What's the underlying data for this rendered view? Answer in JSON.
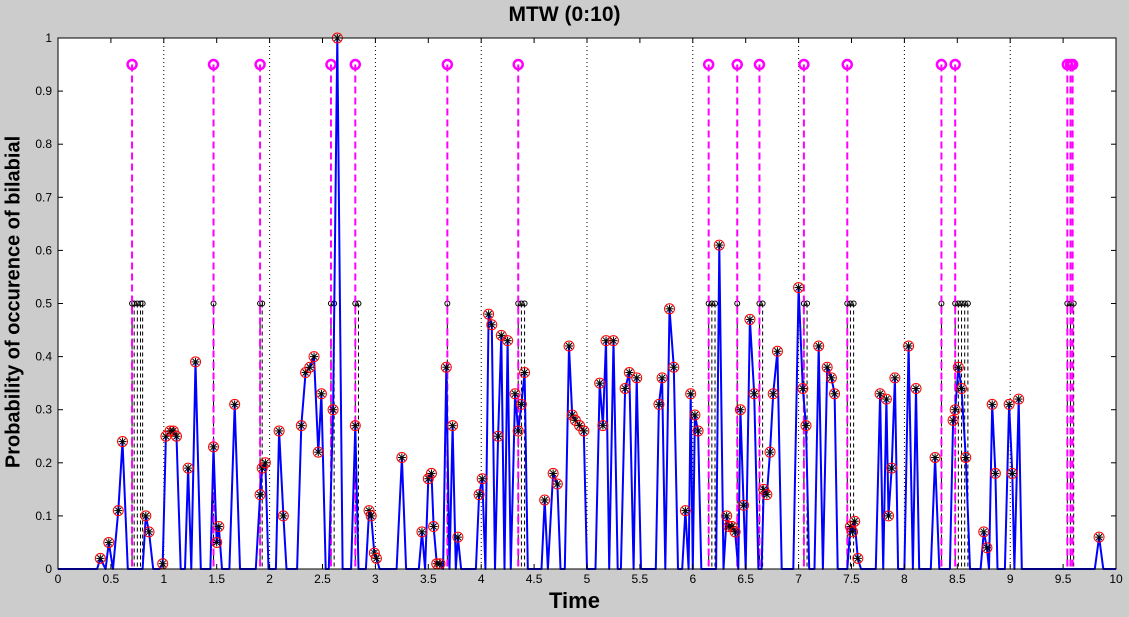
{
  "chart_data": {
    "type": "line",
    "title": "MTW (0:10)",
    "xlabel": "Time",
    "ylabel": "Probability of occurence of bilabial",
    "xlim": [
      0,
      10
    ],
    "ylim": [
      0,
      1
    ],
    "x_ticks": [
      "0",
      "0.5",
      "1",
      "1.5",
      "2",
      "2.5",
      "3",
      "3.5",
      "4",
      "4.5",
      "5",
      "5.5",
      "6",
      "6.5",
      "7",
      "7.5",
      "8",
      "8.5",
      "9",
      "9.5",
      "10"
    ],
    "y_ticks": [
      "0",
      "0.1",
      "0.2",
      "0.3",
      "0.4",
      "0.5",
      "0.6",
      "0.7",
      "0.8",
      "0.9",
      "1"
    ],
    "grid": "vertical dotted at integer x",
    "colors": {
      "signal": "#0000ff",
      "markers": "#ff0000",
      "events": "#ff00ff",
      "candidates": "#000000",
      "background": "#cccccc",
      "axes_background": "#ffffff"
    },
    "peaks": [
      [
        0.37,
        0.0
      ],
      [
        0.4,
        0.02
      ],
      [
        0.45,
        0.0
      ],
      [
        0.48,
        0.05
      ],
      [
        0.52,
        0.0
      ],
      [
        0.57,
        0.11
      ],
      [
        0.61,
        0.24
      ],
      [
        0.66,
        0.0
      ],
      [
        0.8,
        0.0
      ],
      [
        0.83,
        0.1
      ],
      [
        0.86,
        0.07
      ],
      [
        0.9,
        0.0
      ],
      [
        0.96,
        0.0
      ],
      [
        0.99,
        0.01
      ],
      [
        1.02,
        0.25
      ],
      [
        1.06,
        0.26
      ],
      [
        1.09,
        0.26
      ],
      [
        1.12,
        0.25
      ],
      [
        1.16,
        0.0
      ],
      [
        1.2,
        0.0
      ],
      [
        1.23,
        0.19
      ],
      [
        1.26,
        0.0
      ],
      [
        1.3,
        0.39
      ],
      [
        1.35,
        0.0
      ],
      [
        1.44,
        0.0
      ],
      [
        1.47,
        0.23
      ],
      [
        1.5,
        0.05
      ],
      [
        1.52,
        0.08
      ],
      [
        1.55,
        0.0
      ],
      [
        1.62,
        0.0
      ],
      [
        1.67,
        0.31
      ],
      [
        1.72,
        0.0
      ],
      [
        1.87,
        0.0
      ],
      [
        1.91,
        0.14
      ],
      [
        1.93,
        0.19
      ],
      [
        1.96,
        0.2
      ],
      [
        1.99,
        0.0
      ],
      [
        2.06,
        0.0
      ],
      [
        2.09,
        0.26
      ],
      [
        2.13,
        0.1
      ],
      [
        2.16,
        0.0
      ],
      [
        2.26,
        0.0
      ],
      [
        2.3,
        0.27
      ],
      [
        2.34,
        0.37
      ],
      [
        2.38,
        0.38
      ],
      [
        2.42,
        0.4
      ],
      [
        2.46,
        0.22
      ],
      [
        2.49,
        0.33
      ],
      [
        2.53,
        0.0
      ],
      [
        2.56,
        0.0
      ],
      [
        2.6,
        0.3
      ],
      [
        2.64,
        1.0
      ],
      [
        2.69,
        0.0
      ],
      [
        2.77,
        0.0
      ],
      [
        2.81,
        0.27
      ],
      [
        2.84,
        0.0
      ],
      [
        2.91,
        0.0
      ],
      [
        2.94,
        0.11
      ],
      [
        2.96,
        0.1
      ],
      [
        2.99,
        0.03
      ],
      [
        3.01,
        0.02
      ],
      [
        3.04,
        0.0
      ],
      [
        3.2,
        0.0
      ],
      [
        3.25,
        0.21
      ],
      [
        3.29,
        0.0
      ],
      [
        3.41,
        0.0
      ],
      [
        3.44,
        0.07
      ],
      [
        3.47,
        0.0
      ],
      [
        3.5,
        0.17
      ],
      [
        3.53,
        0.18
      ],
      [
        3.55,
        0.08
      ],
      [
        3.58,
        0.01
      ],
      [
        3.61,
        0.01
      ],
      [
        3.64,
        0.0
      ],
      [
        3.67,
        0.38
      ],
      [
        3.7,
        0.0
      ],
      [
        3.73,
        0.27
      ],
      [
        3.76,
        0.0
      ],
      [
        3.78,
        0.06
      ],
      [
        3.81,
        0.0
      ],
      [
        3.95,
        0.0
      ],
      [
        3.98,
        0.14
      ],
      [
        4.01,
        0.17
      ],
      [
        4.04,
        0.0
      ],
      [
        4.07,
        0.48
      ],
      [
        4.1,
        0.46
      ],
      [
        4.13,
        0.0
      ],
      [
        4.16,
        0.25
      ],
      [
        4.19,
        0.44
      ],
      [
        4.22,
        0.0
      ],
      [
        4.25,
        0.43
      ],
      [
        4.28,
        0.0
      ],
      [
        4.32,
        0.33
      ],
      [
        4.35,
        0.26
      ],
      [
        4.38,
        0.31
      ],
      [
        4.41,
        0.37
      ],
      [
        4.44,
        0.0
      ],
      [
        4.57,
        0.0
      ],
      [
        4.6,
        0.13
      ],
      [
        4.63,
        0.0
      ],
      [
        4.68,
        0.18
      ],
      [
        4.72,
        0.16
      ],
      [
        4.75,
        0.0
      ],
      [
        4.79,
        0.0
      ],
      [
        4.83,
        0.42
      ],
      [
        4.86,
        0.29
      ],
      [
        4.89,
        0.28
      ],
      [
        4.93,
        0.27
      ],
      [
        4.97,
        0.26
      ],
      [
        5.0,
        0.0
      ],
      [
        5.08,
        0.0
      ],
      [
        5.12,
        0.35
      ],
      [
        5.15,
        0.27
      ],
      [
        5.18,
        0.43
      ],
      [
        5.21,
        0.0
      ],
      [
        5.25,
        0.43
      ],
      [
        5.29,
        0.0
      ],
      [
        5.32,
        0.0
      ],
      [
        5.36,
        0.34
      ],
      [
        5.4,
        0.37
      ],
      [
        5.44,
        0.0
      ],
      [
        5.47,
        0.36
      ],
      [
        5.51,
        0.0
      ],
      [
        5.65,
        0.0
      ],
      [
        5.68,
        0.31
      ],
      [
        5.71,
        0.36
      ],
      [
        5.74,
        0.0
      ],
      [
        5.78,
        0.49
      ],
      [
        5.82,
        0.38
      ],
      [
        5.86,
        0.0
      ],
      [
        5.9,
        0.0
      ],
      [
        5.93,
        0.11
      ],
      [
        5.96,
        0.0
      ],
      [
        5.98,
        0.33
      ],
      [
        6.0,
        0.0
      ],
      [
        6.02,
        0.29
      ],
      [
        6.05,
        0.26
      ],
      [
        6.08,
        0.0
      ],
      [
        6.22,
        0.0
      ],
      [
        6.25,
        0.61
      ],
      [
        6.29,
        0.0
      ],
      [
        6.32,
        0.1
      ],
      [
        6.34,
        0.08
      ],
      [
        6.37,
        0.08
      ],
      [
        6.4,
        0.07
      ],
      [
        6.43,
        0.0
      ],
      [
        6.45,
        0.3
      ],
      [
        6.48,
        0.12
      ],
      [
        6.5,
        0.0
      ],
      [
        6.54,
        0.47
      ],
      [
        6.58,
        0.33
      ],
      [
        6.62,
        0.0
      ],
      [
        6.65,
        0.0
      ],
      [
        6.67,
        0.15
      ],
      [
        6.7,
        0.14
      ],
      [
        6.73,
        0.22
      ],
      [
        6.76,
        0.33
      ],
      [
        6.8,
        0.41
      ],
      [
        6.84,
        0.0
      ],
      [
        6.95,
        0.0
      ],
      [
        7.0,
        0.53
      ],
      [
        7.04,
        0.34
      ],
      [
        7.07,
        0.27
      ],
      [
        7.1,
        0.0
      ],
      [
        7.15,
        0.0
      ],
      [
        7.19,
        0.42
      ],
      [
        7.23,
        0.0
      ],
      [
        7.27,
        0.38
      ],
      [
        7.31,
        0.36
      ],
      [
        7.34,
        0.33
      ],
      [
        7.37,
        0.0
      ],
      [
        7.46,
        0.0
      ],
      [
        7.49,
        0.08
      ],
      [
        7.51,
        0.07
      ],
      [
        7.53,
        0.09
      ],
      [
        7.56,
        0.02
      ],
      [
        7.59,
        0.0
      ],
      [
        7.73,
        0.0
      ],
      [
        7.77,
        0.33
      ],
      [
        7.8,
        0.0
      ],
      [
        7.83,
        0.32
      ],
      [
        7.85,
        0.1
      ],
      [
        7.88,
        0.19
      ],
      [
        7.91,
        0.36
      ],
      [
        7.94,
        0.0
      ],
      [
        8.0,
        0.0
      ],
      [
        8.04,
        0.42
      ],
      [
        8.08,
        0.0
      ],
      [
        8.11,
        0.34
      ],
      [
        8.14,
        0.0
      ],
      [
        8.25,
        0.0
      ],
      [
        8.29,
        0.21
      ],
      [
        8.33,
        0.0
      ],
      [
        8.43,
        0.0
      ],
      [
        8.46,
        0.28
      ],
      [
        8.48,
        0.3
      ],
      [
        8.51,
        0.38
      ],
      [
        8.54,
        0.34
      ],
      [
        8.58,
        0.21
      ],
      [
        8.62,
        0.0
      ],
      [
        8.72,
        0.0
      ],
      [
        8.75,
        0.07
      ],
      [
        8.78,
        0.04
      ],
      [
        8.8,
        0.0
      ],
      [
        8.83,
        0.31
      ],
      [
        8.86,
        0.18
      ],
      [
        8.88,
        0.0
      ],
      [
        8.95,
        0.0
      ],
      [
        8.99,
        0.31
      ],
      [
        9.02,
        0.18
      ],
      [
        9.04,
        0.0
      ],
      [
        9.08,
        0.32
      ],
      [
        9.11,
        0.0
      ],
      [
        9.8,
        0.0
      ],
      [
        9.84,
        0.06
      ],
      [
        9.88,
        0.0
      ]
    ],
    "circle_markers": [
      [
        0.4,
        0.02
      ],
      [
        0.48,
        0.05
      ],
      [
        0.57,
        0.11
      ],
      [
        0.61,
        0.24
      ],
      [
        0.83,
        0.1
      ],
      [
        0.86,
        0.07
      ],
      [
        0.99,
        0.01
      ],
      [
        1.02,
        0.25
      ],
      [
        1.06,
        0.26
      ],
      [
        1.09,
        0.26
      ],
      [
        1.12,
        0.25
      ],
      [
        1.23,
        0.19
      ],
      [
        1.3,
        0.39
      ],
      [
        1.47,
        0.23
      ],
      [
        1.5,
        0.05
      ],
      [
        1.52,
        0.08
      ],
      [
        1.67,
        0.31
      ],
      [
        1.91,
        0.14
      ],
      [
        1.93,
        0.19
      ],
      [
        1.96,
        0.2
      ],
      [
        2.09,
        0.26
      ],
      [
        2.13,
        0.1
      ],
      [
        2.3,
        0.27
      ],
      [
        2.34,
        0.37
      ],
      [
        2.38,
        0.38
      ],
      [
        2.42,
        0.4
      ],
      [
        2.46,
        0.22
      ],
      [
        2.49,
        0.33
      ],
      [
        2.6,
        0.3
      ],
      [
        2.64,
        1.0
      ],
      [
        2.81,
        0.27
      ],
      [
        2.94,
        0.11
      ],
      [
        2.96,
        0.1
      ],
      [
        2.99,
        0.03
      ],
      [
        3.01,
        0.02
      ],
      [
        3.25,
        0.21
      ],
      [
        3.44,
        0.07
      ],
      [
        3.5,
        0.17
      ],
      [
        3.53,
        0.18
      ],
      [
        3.55,
        0.08
      ],
      [
        3.58,
        0.01
      ],
      [
        3.61,
        0.01
      ],
      [
        3.67,
        0.38
      ],
      [
        3.73,
        0.27
      ],
      [
        3.78,
        0.06
      ],
      [
        3.98,
        0.14
      ],
      [
        4.01,
        0.17
      ],
      [
        4.07,
        0.48
      ],
      [
        4.1,
        0.46
      ],
      [
        4.16,
        0.25
      ],
      [
        4.19,
        0.44
      ],
      [
        4.25,
        0.43
      ],
      [
        4.32,
        0.33
      ],
      [
        4.35,
        0.26
      ],
      [
        4.38,
        0.31
      ],
      [
        4.41,
        0.37
      ],
      [
        4.6,
        0.13
      ],
      [
        4.68,
        0.18
      ],
      [
        4.72,
        0.16
      ],
      [
        4.83,
        0.42
      ],
      [
        4.86,
        0.29
      ],
      [
        4.89,
        0.28
      ],
      [
        4.93,
        0.27
      ],
      [
        4.97,
        0.26
      ],
      [
        5.12,
        0.35
      ],
      [
        5.15,
        0.27
      ],
      [
        5.18,
        0.43
      ],
      [
        5.25,
        0.43
      ],
      [
        5.36,
        0.34
      ],
      [
        5.4,
        0.37
      ],
      [
        5.47,
        0.36
      ],
      [
        5.68,
        0.31
      ],
      [
        5.71,
        0.36
      ],
      [
        5.78,
        0.49
      ],
      [
        5.82,
        0.38
      ],
      [
        5.93,
        0.11
      ],
      [
        5.98,
        0.33
      ],
      [
        6.02,
        0.29
      ],
      [
        6.05,
        0.26
      ],
      [
        6.25,
        0.61
      ],
      [
        6.32,
        0.1
      ],
      [
        6.34,
        0.08
      ],
      [
        6.37,
        0.08
      ],
      [
        6.4,
        0.07
      ],
      [
        6.45,
        0.3
      ],
      [
        6.48,
        0.12
      ],
      [
        6.54,
        0.47
      ],
      [
        6.58,
        0.33
      ],
      [
        6.67,
        0.15
      ],
      [
        6.7,
        0.14
      ],
      [
        6.73,
        0.22
      ],
      [
        6.76,
        0.33
      ],
      [
        6.8,
        0.41
      ],
      [
        7.0,
        0.53
      ],
      [
        7.04,
        0.34
      ],
      [
        7.07,
        0.27
      ],
      [
        7.19,
        0.42
      ],
      [
        7.27,
        0.38
      ],
      [
        7.31,
        0.36
      ],
      [
        7.34,
        0.33
      ],
      [
        7.49,
        0.08
      ],
      [
        7.51,
        0.07
      ],
      [
        7.53,
        0.09
      ],
      [
        7.56,
        0.02
      ],
      [
        7.77,
        0.33
      ],
      [
        7.83,
        0.32
      ],
      [
        7.85,
        0.1
      ],
      [
        7.88,
        0.19
      ],
      [
        7.91,
        0.36
      ],
      [
        8.04,
        0.42
      ],
      [
        8.11,
        0.34
      ],
      [
        8.29,
        0.21
      ],
      [
        8.46,
        0.28
      ],
      [
        8.48,
        0.3
      ],
      [
        8.51,
        0.38
      ],
      [
        8.54,
        0.34
      ],
      [
        8.58,
        0.21
      ],
      [
        8.75,
        0.07
      ],
      [
        8.78,
        0.04
      ],
      [
        8.83,
        0.31
      ],
      [
        8.86,
        0.18
      ],
      [
        8.99,
        0.31
      ],
      [
        9.02,
        0.18
      ],
      [
        9.08,
        0.32
      ],
      [
        9.84,
        0.06
      ]
    ],
    "event_lines": [
      0.7,
      1.47,
      1.91,
      2.58,
      2.81,
      3.68,
      4.35,
      6.15,
      6.42,
      6.63,
      7.05,
      7.46,
      8.35,
      8.48,
      9.54,
      9.57,
      9.59
    ],
    "event_level": 0.95,
    "candidate_lines": [
      [
        0.7,
        0.72,
        0.75,
        0.78,
        0.8
      ],
      [
        1.47
      ],
      [
        1.91,
        1.93
      ],
      [
        2.58,
        2.61
      ],
      [
        2.81,
        2.84
      ],
      [
        3.68
      ],
      [
        4.35,
        4.38,
        4.41
      ],
      [
        6.15,
        6.18,
        6.21
      ],
      [
        6.42
      ],
      [
        6.63,
        6.66
      ],
      [
        7.05,
        7.08
      ],
      [
        7.46,
        7.49,
        7.52
      ],
      [
        8.35
      ],
      [
        8.48,
        8.51,
        8.54,
        8.57,
        8.6
      ],
      [
        9.54,
        9.57,
        9.6
      ]
    ],
    "candidate_level": 0.5
  }
}
